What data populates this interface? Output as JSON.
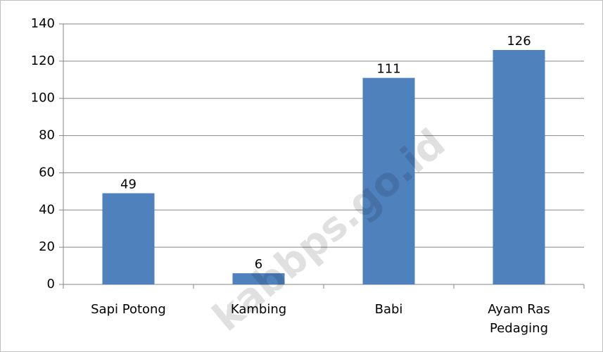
{
  "chart_data": {
    "type": "bar",
    "categories": [
      "Sapi Potong",
      "Kambing",
      "Babi",
      "Ayam Ras Pedaging"
    ],
    "values": [
      49,
      6,
      111,
      126
    ],
    "color": "#4f81bd",
    "ylim": [
      0,
      140
    ],
    "yticks": [
      0,
      20,
      40,
      60,
      80,
      100,
      120,
      140
    ],
    "grid": true,
    "watermark": "kabbps.go.id"
  }
}
